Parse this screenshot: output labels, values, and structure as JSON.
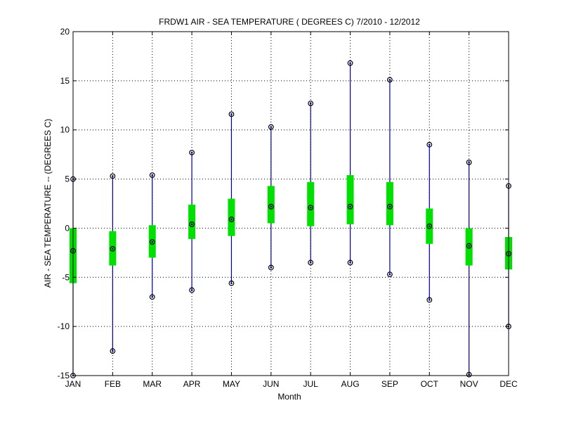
{
  "chart_data": {
    "type": "boxplot",
    "title": "FRDW1  AIR - SEA TEMPERATURE ( DEGREES C) 7/2010 - 12/2012",
    "xlabel": "Month",
    "ylabel": "AIR - SEA TEMPERATURE -- (DEGREES C)",
    "ylim": [
      -15,
      20
    ],
    "yticks": [
      -15,
      -10,
      -5,
      0,
      5,
      10,
      15,
      20
    ],
    "grid": true,
    "categories": [
      "JAN",
      "FEB",
      "MAR",
      "APR",
      "MAY",
      "JUN",
      "JUL",
      "AUG",
      "SEP",
      "OCT",
      "NOV",
      "DEC"
    ],
    "min": [
      -15.0,
      -12.5,
      -7.0,
      -6.3,
      -5.6,
      -4.0,
      -3.5,
      -3.5,
      -4.7,
      -7.3,
      -14.9,
      -10.0
    ],
    "q1": [
      -5.6,
      -3.8,
      -3.0,
      -1.1,
      -0.8,
      0.5,
      0.2,
      0.4,
      0.3,
      -1.6,
      -3.8,
      -4.2
    ],
    "median": [
      -2.3,
      -2.1,
      -1.4,
      0.4,
      0.9,
      2.2,
      2.1,
      2.2,
      2.2,
      0.2,
      -1.8,
      -2.6
    ],
    "q3": [
      0.0,
      -0.3,
      0.3,
      2.4,
      3.0,
      4.3,
      4.7,
      5.4,
      4.7,
      2.0,
      0.0,
      -0.9
    ],
    "max": [
      5.0,
      5.3,
      5.4,
      7.7,
      11.6,
      10.3,
      12.7,
      16.8,
      15.1,
      8.5,
      6.7,
      4.3
    ],
    "colors": {
      "whisker": "#0000a0",
      "box": "#00e000",
      "marker": "#000000",
      "grid": "#000000"
    }
  }
}
